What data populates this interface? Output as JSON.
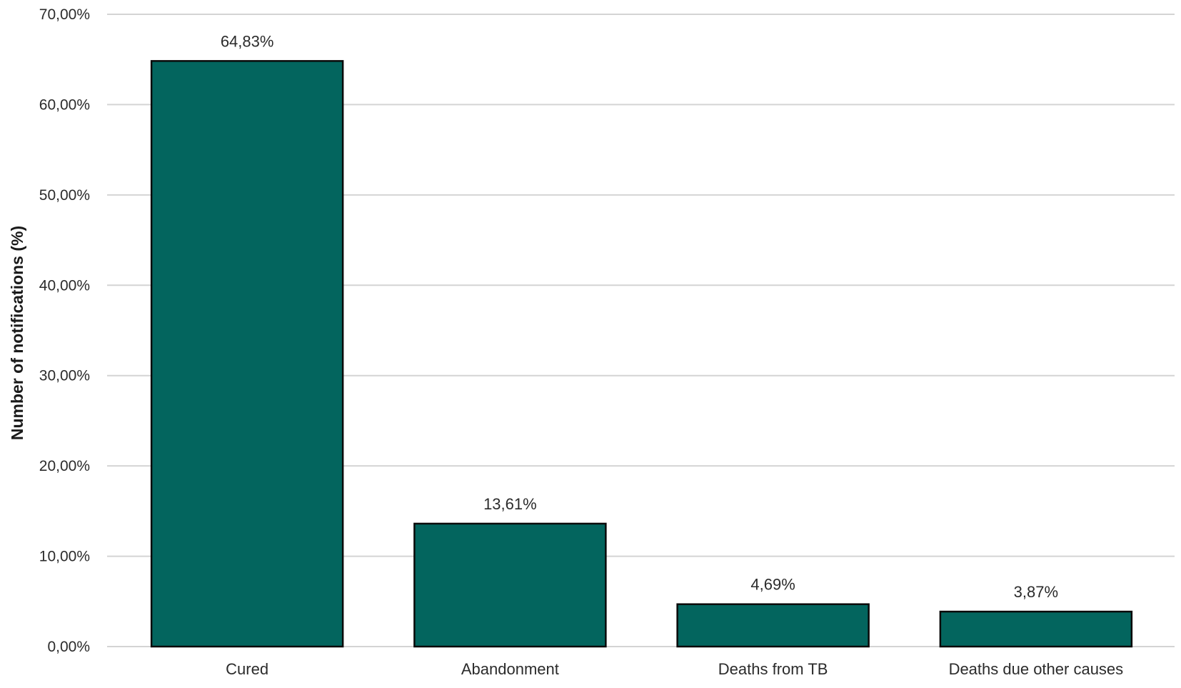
{
  "chart_data": {
    "type": "bar",
    "title": "",
    "xlabel": "",
    "ylabel": "Number of notifications (%)",
    "categories": [
      "Cured",
      "Abandonment",
      "Deaths from TB",
      "Deaths due other causes"
    ],
    "values": [
      64.83,
      13.61,
      4.69,
      3.87
    ],
    "value_labels": [
      "64,83%",
      "13,61%",
      "4,69%",
      "3,87%"
    ],
    "ylim": [
      0,
      70
    ],
    "yticks": [
      0,
      10,
      20,
      30,
      40,
      50,
      60,
      70
    ],
    "ytick_labels": [
      "0,00%",
      "10,00%",
      "20,00%",
      "30,00%",
      "40,00%",
      "50,00%",
      "60,00%",
      "70,00%"
    ],
    "grid": true,
    "legend": "none",
    "bar_color": "#03655e"
  }
}
